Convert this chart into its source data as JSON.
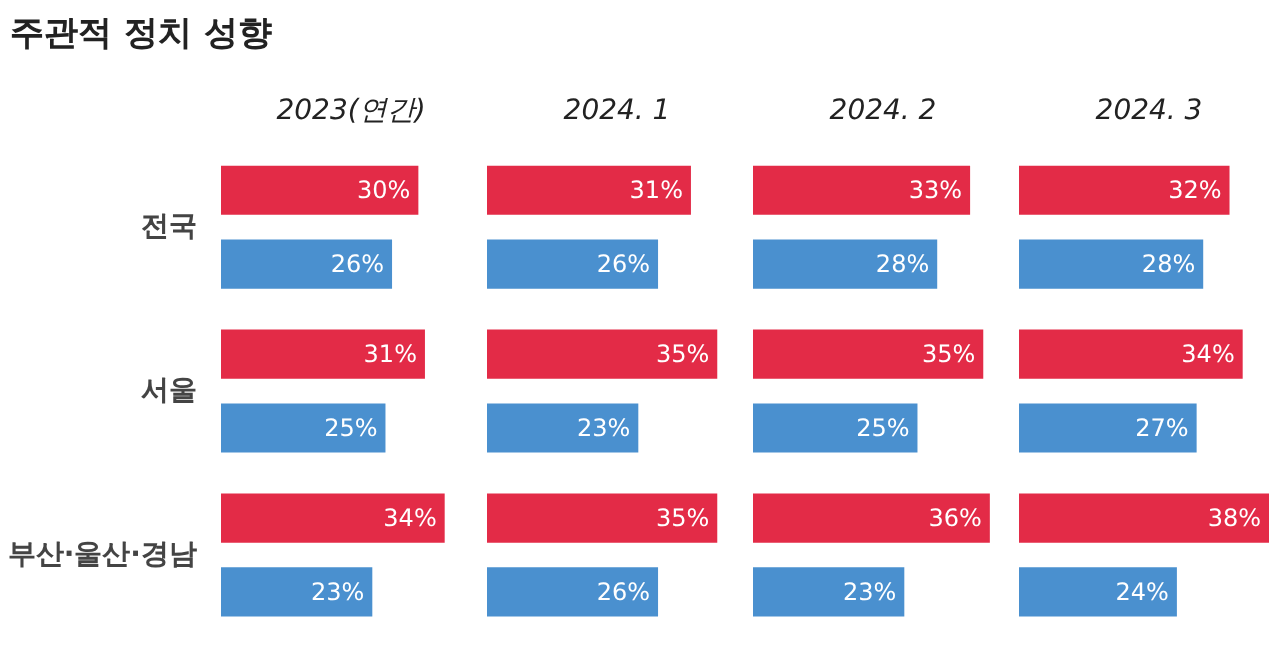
{
  "chart_data": [
    {
      "type": "bar",
      "orientation": "horizontal",
      "title": "주관적 정치 성향",
      "subtitle": "2023(연간)",
      "categories": [
        "전국",
        "서울",
        "부산·울산·경남"
      ],
      "tick_labels": "y",
      "series": [
        {
          "color": "#e32b47",
          "values": [
            30,
            31,
            34
          ],
          "value_labels": [
            "30%",
            "31%",
            "34%"
          ]
        },
        {
          "color": "#4a90cf",
          "values": [
            26,
            25,
            23
          ],
          "value_labels": [
            "26%",
            "25%",
            "23%"
          ]
        }
      ]
    },
    {
      "type": "bar",
      "orientation": "horizontal",
      "subtitle": "2024. 1",
      "tick_labels": false,
      "series": [
        {
          "color": "#e32b47",
          "values": [
            31,
            35,
            35
          ],
          "value_labels": [
            "31%",
            "35%",
            "35%"
          ]
        },
        {
          "color": "#4a90cf",
          "values": [
            26,
            23,
            26
          ],
          "value_labels": [
            "26%",
            "23%",
            "26%"
          ]
        }
      ]
    },
    {
      "type": "bar",
      "orientation": "horizontal",
      "subtitle": "2024. 2",
      "tick_labels": false,
      "series": [
        {
          "color": "#e32b47",
          "values": [
            33,
            35,
            36
          ],
          "value_labels": [
            "33%",
            "35%",
            "36%"
          ]
        },
        {
          "color": "#4a90cf",
          "values": [
            28,
            25,
            23
          ],
          "value_labels": [
            "28%",
            "25%",
            "23%"
          ]
        }
      ]
    },
    {
      "type": "bar",
      "orientation": "horizontal",
      "subtitle": "2024. 3",
      "tick_labels": false,
      "series": [
        {
          "color": "#e32b47",
          "values": [
            32,
            34,
            38
          ],
          "value_labels": [
            "32%",
            "34%",
            "38%"
          ]
        },
        {
          "color": "#4a90cf",
          "values": [
            28,
            27,
            24
          ],
          "value_labels": [
            "28%",
            "27%",
            "24%"
          ]
        }
      ]
    }
  ]
}
